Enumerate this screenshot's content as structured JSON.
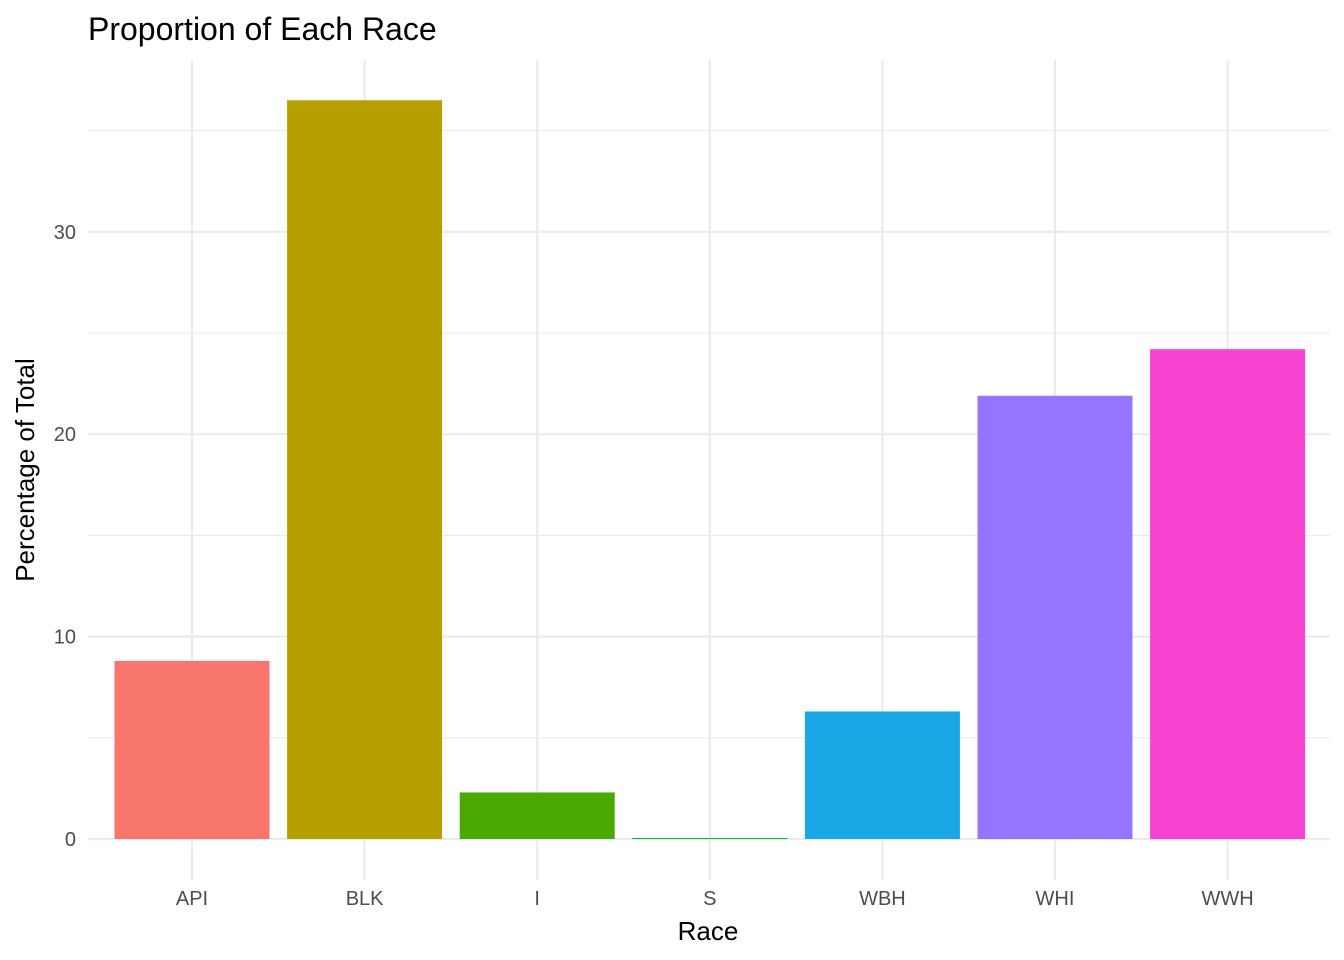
{
  "chart_data": {
    "type": "bar",
    "title": "Proportion of Each Race",
    "xlabel": "Race",
    "ylabel": "Percentage of Total",
    "categories": [
      "API",
      "BLK",
      "I",
      "S",
      "WBH",
      "WHI",
      "WWH"
    ],
    "values": [
      8.8,
      36.5,
      2.3,
      0.05,
      6.3,
      21.9,
      24.2
    ],
    "colors": [
      "#F8766D",
      "#B79F00",
      "#49A900",
      "#00BA38",
      "#19A7E6",
      "#9574FF",
      "#F842D2"
    ],
    "ylim": [
      -1.8,
      38.3
    ],
    "yticks": [
      0,
      10,
      20,
      30
    ],
    "ytick_labels": [
      "0",
      "10",
      "20",
      "30"
    ],
    "grid": true,
    "legend": "none"
  }
}
